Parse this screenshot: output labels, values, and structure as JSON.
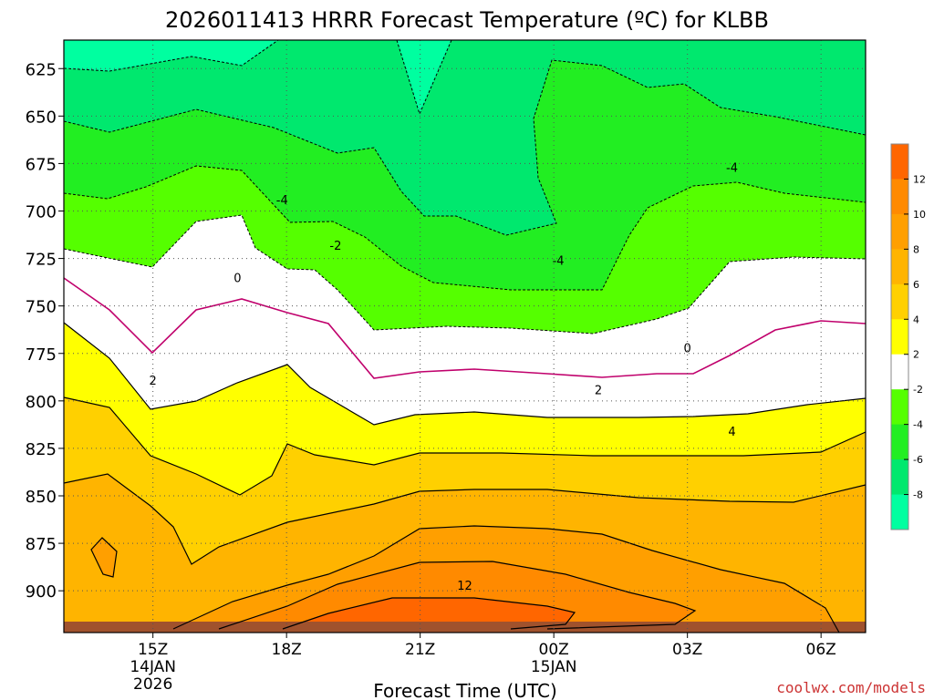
{
  "chart_data": {
    "type": "contour",
    "title": "2026011413 HRRR Forecast Temperature (ºC) for KLBB",
    "xlabel": "Forecast Time (UTC)",
    "ylabel": "",
    "credit": "coolwx.com/models",
    "y_axis": {
      "ticks": [
        625,
        650,
        675,
        700,
        725,
        750,
        775,
        800,
        825,
        850,
        875,
        900
      ],
      "tick_labels": [
        "625",
        "650",
        "675",
        "700",
        "725",
        "750",
        "775",
        "800",
        "825",
        "850",
        "875",
        "900"
      ],
      "range": [
        610,
        922
      ],
      "unit": "hPa"
    },
    "x_axis": {
      "range_hours": [
        13,
        31
      ],
      "ticks": [
        {
          "hour": 15,
          "label": "15Z",
          "sub1": "14JAN",
          "sub2": "2026"
        },
        {
          "hour": 18,
          "label": "18Z",
          "sub1": "",
          "sub2": ""
        },
        {
          "hour": 21,
          "label": "21Z",
          "sub1": "",
          "sub2": ""
        },
        {
          "hour": 24,
          "label": "00Z",
          "sub1": "15JAN",
          "sub2": ""
        },
        {
          "hour": 27,
          "label": "03Z",
          "sub1": "",
          "sub2": ""
        },
        {
          "hour": 30,
          "label": "06Z",
          "sub1": "",
          "sub2": ""
        }
      ]
    },
    "colorbar": {
      "labels": [
        "12",
        "10",
        "8",
        "6",
        "4",
        "2",
        "-2",
        "-4",
        "-6",
        "-8"
      ],
      "colors": [
        "#ff6600",
        "#ff8a00",
        "#ff9f00",
        "#ffb400",
        "#ffd000",
        "#ffff00",
        "#ffffff",
        "#55ff00",
        "#22ee22",
        "#00e86e",
        "#00ffa0"
      ]
    },
    "contour_labels": [
      {
        "value": "-4",
        "hour": 17.9,
        "p": 694
      },
      {
        "value": "-2",
        "hour": 19.1,
        "p": 718
      },
      {
        "value": "-4",
        "hour": 24.1,
        "p": 726
      },
      {
        "value": "-4",
        "hour": 28.0,
        "p": 677
      },
      {
        "value": "0",
        "hour": 16.9,
        "p": 735
      },
      {
        "value": "0",
        "hour": 27.0,
        "p": 772
      },
      {
        "value": "2",
        "hour": 15.0,
        "p": 789
      },
      {
        "value": "2",
        "hour": 25.0,
        "p": 794
      },
      {
        "value": "4",
        "hour": 28.0,
        "p": 816
      },
      {
        "value": "12",
        "hour": 22.0,
        "p": 897
      }
    ]
  }
}
